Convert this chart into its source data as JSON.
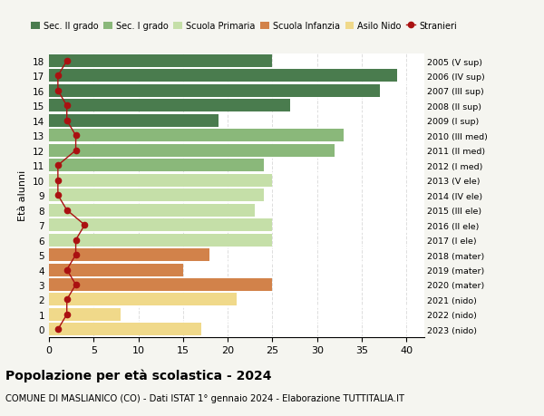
{
  "ages": [
    18,
    17,
    16,
    15,
    14,
    13,
    12,
    11,
    10,
    9,
    8,
    7,
    6,
    5,
    4,
    3,
    2,
    1,
    0
  ],
  "bar_values": [
    25,
    39,
    37,
    27,
    19,
    33,
    32,
    24,
    25,
    24,
    23,
    25,
    25,
    18,
    15,
    25,
    21,
    8,
    17
  ],
  "bar_colors": [
    "#4a7c4e",
    "#4a7c4e",
    "#4a7c4e",
    "#4a7c4e",
    "#4a7c4e",
    "#8ab87a",
    "#8ab87a",
    "#8ab87a",
    "#c5dfa8",
    "#c5dfa8",
    "#c5dfa8",
    "#c5dfa8",
    "#c5dfa8",
    "#d2824a",
    "#d2824a",
    "#d2824a",
    "#f0d98a",
    "#f0d98a",
    "#f0d98a"
  ],
  "stranieri_values": [
    2,
    1,
    1,
    2,
    2,
    3,
    3,
    1,
    1,
    1,
    2,
    4,
    3,
    3,
    2,
    3,
    2,
    2,
    1
  ],
  "right_labels": [
    "2005 (V sup)",
    "2006 (IV sup)",
    "2007 (III sup)",
    "2008 (II sup)",
    "2009 (I sup)",
    "2010 (III med)",
    "2011 (II med)",
    "2012 (I med)",
    "2013 (V ele)",
    "2014 (IV ele)",
    "2015 (III ele)",
    "2016 (II ele)",
    "2017 (I ele)",
    "2018 (mater)",
    "2019 (mater)",
    "2020 (mater)",
    "2021 (nido)",
    "2022 (nido)",
    "2023 (nido)"
  ],
  "legend_labels": [
    "Sec. II grado",
    "Sec. I grado",
    "Scuola Primaria",
    "Scuola Infanzia",
    "Asilo Nido",
    "Stranieri"
  ],
  "legend_colors": [
    "#4a7c4e",
    "#8ab87a",
    "#c5dfa8",
    "#d2824a",
    "#f0d98a",
    "#cc2222"
  ],
  "title": "Popolazione per età scolastica - 2024",
  "subtitle": "COMUNE DI MASLIANICO (CO) - Dati ISTAT 1° gennaio 2024 - Elaborazione TUTTITALIA.IT",
  "ylabel_left": "Età alunni",
  "xlim": [
    0,
    42
  ],
  "stranieri_color": "#aa1111",
  "background_color": "#f5f5f0",
  "plot_bg_color": "#ffffff",
  "grid_color": "#dddddd"
}
